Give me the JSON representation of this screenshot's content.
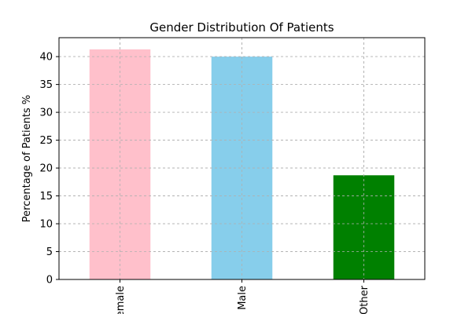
{
  "chart_data": {
    "type": "bar",
    "title": "Gender Distribution Of Patients",
    "xlabel": "",
    "ylabel": "Percentage of Patients %",
    "categories": [
      "Female",
      "Male",
      "Other"
    ],
    "values": [
      41.3,
      40.0,
      18.7
    ],
    "colors": [
      "#ffc0cb",
      "#87ceeb",
      "#008000"
    ],
    "ylim": [
      0,
      43.4
    ],
    "yticks": [
      0,
      5,
      10,
      15,
      20,
      25,
      30,
      35,
      40
    ],
    "grid": true,
    "xtick_rotation": 90
  }
}
